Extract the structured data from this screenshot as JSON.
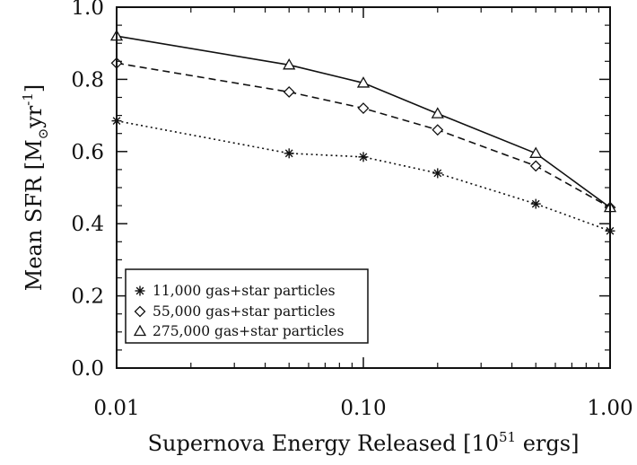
{
  "chart_data": {
    "type": "line",
    "x_scale": "log",
    "xlim": [
      0.01,
      1.0
    ],
    "ylim": [
      0.0,
      1.0
    ],
    "xlabel_main": "Supernova Energy Released [10",
    "xlabel_sup": "51",
    "xlabel_end": " ergs]",
    "ylabel_main": "Mean SFR [M",
    "ylabel_sub": "⊙",
    "ylabel_mid": "yr",
    "ylabel_sup": "-1",
    "ylabel_end": "]",
    "x_ticks": [
      0.01,
      0.1,
      1.0
    ],
    "x_tick_labels": [
      "0.01",
      "0.10",
      "1.00"
    ],
    "y_ticks": [
      0.0,
      0.2,
      0.4,
      0.6,
      0.8,
      1.0
    ],
    "y_tick_labels": [
      "0.0",
      "0.2",
      "0.4",
      "0.6",
      "0.8",
      "1.0"
    ],
    "grid": false,
    "legend_position": "bottom-left",
    "series": [
      {
        "name": "11,000 gas+star particles",
        "marker": "asterisk",
        "line_style": "dotted",
        "x": [
          0.01,
          0.05,
          0.1,
          0.2,
          0.5,
          1.0
        ],
        "y": [
          0.685,
          0.595,
          0.585,
          0.54,
          0.455,
          0.38
        ]
      },
      {
        "name": "55,000 gas+star particles",
        "marker": "diamond",
        "line_style": "dashed",
        "x": [
          0.01,
          0.05,
          0.1,
          0.2,
          0.5,
          1.0
        ],
        "y": [
          0.845,
          0.765,
          0.72,
          0.66,
          0.56,
          0.445
        ]
      },
      {
        "name": "275,000 gas+star particles",
        "marker": "triangle",
        "line_style": "solid",
        "x": [
          0.01,
          0.05,
          0.1,
          0.2,
          0.5,
          1.0
        ],
        "y": [
          0.92,
          0.84,
          0.79,
          0.705,
          0.595,
          0.445
        ]
      }
    ]
  }
}
